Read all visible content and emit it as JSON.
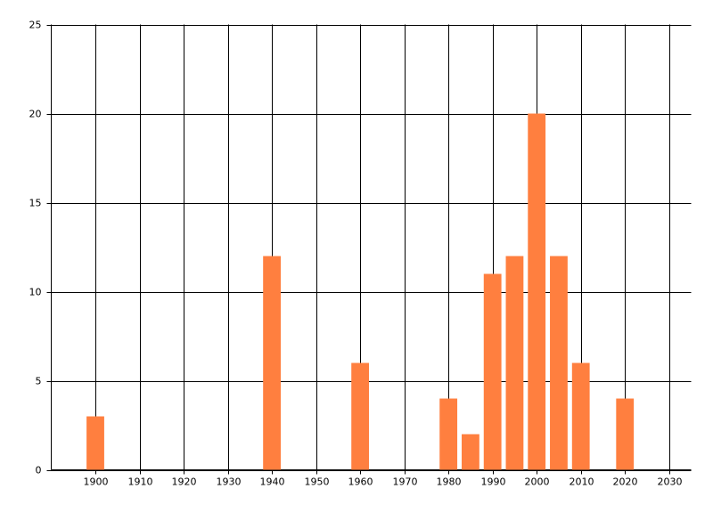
{
  "chart_data": {
    "type": "bar",
    "x": [
      1900,
      1940,
      1960,
      1980,
      1985,
      1990,
      1995,
      2000,
      2005,
      2010,
      2020
    ],
    "values": [
      3,
      12,
      6,
      4,
      2,
      11,
      12,
      20,
      12,
      6,
      4
    ],
    "color": "#ff7f3f",
    "xlim": [
      1890,
      2035
    ],
    "xticks": [
      1900,
      1910,
      1920,
      1930,
      1940,
      1950,
      1960,
      1970,
      1980,
      1990,
      2000,
      2010,
      2020,
      2030
    ],
    "ylim": [
      0,
      25
    ],
    "yticks": [
      0,
      5,
      10,
      15,
      20,
      25
    ],
    "grid": true
  }
}
